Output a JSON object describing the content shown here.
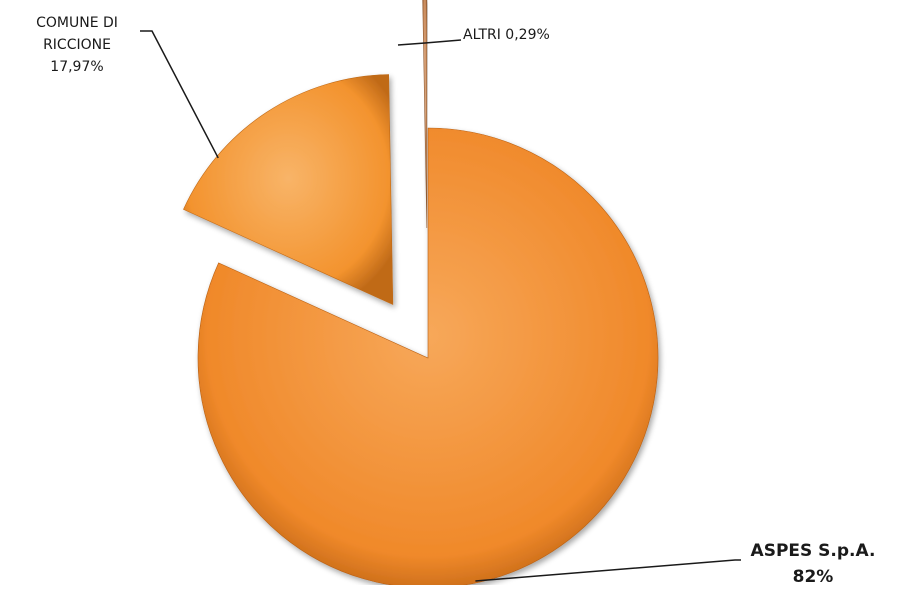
{
  "chart_data": {
    "type": "pie",
    "exploded": true,
    "start_angle_deg": 0,
    "direction": "clockwise",
    "slices": [
      {
        "label": "ASPES S.p.A.",
        "value": 82,
        "value_text": "82%",
        "color": "#f0892a",
        "color_dark": "#b85f12",
        "color_light": "#f7a85a"
      },
      {
        "label": "COMUNE DI RICCIONE",
        "label_lines": [
          "COMUNE DI",
          "RICCIONE"
        ],
        "value": 17.97,
        "value_text": "17,97%",
        "color": "#f3932e",
        "color_dark": "#c06a18",
        "color_light": "#f8b468"
      },
      {
        "label": "ALTRI",
        "value": 0.29,
        "value_text": "0,29%",
        "label_full": "ALTRI 0,29%",
        "color": "#c98a5a",
        "color_dark": "#8e5a33",
        "color_light": "#e0b08a"
      }
    ]
  }
}
